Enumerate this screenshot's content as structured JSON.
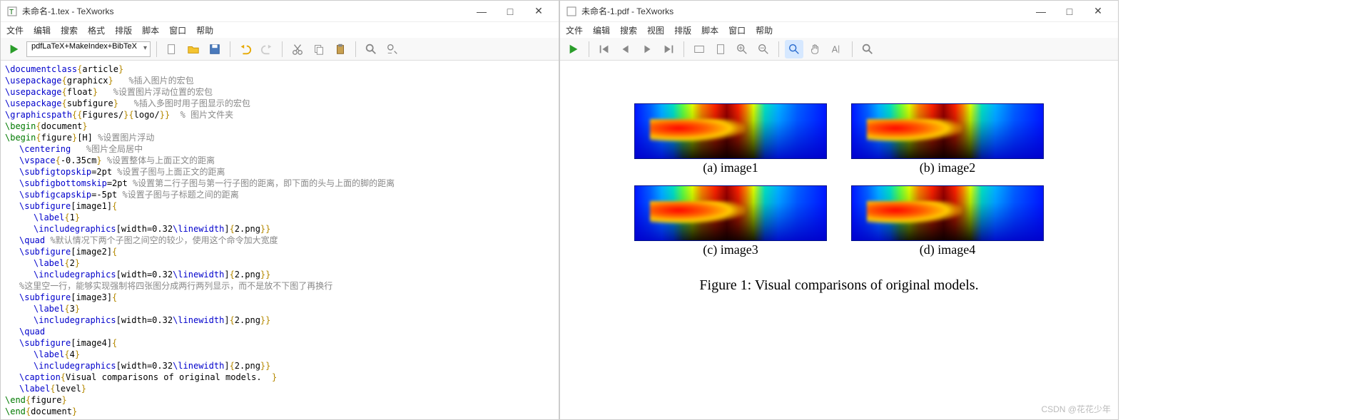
{
  "left": {
    "title": "未命名-1.tex - TeXworks",
    "menus": [
      "文件",
      "编辑",
      "搜索",
      "格式",
      "排版",
      "脚本",
      "窗口",
      "帮助"
    ],
    "compile_mode": "pdfLaTeX+MakeIndex+BibTeX",
    "code": [
      {
        "ind": 0,
        "seg": [
          [
            "t-cmd",
            "\\documentclass"
          ],
          [
            "t-yel",
            "{"
          ],
          [
            "",
            "article"
          ],
          [
            "t-yel",
            "}"
          ]
        ]
      },
      {
        "ind": 0,
        "seg": [
          [
            "t-cmd",
            "\\usepackage"
          ],
          [
            "t-yel",
            "{"
          ],
          [
            "",
            "graphicx"
          ],
          [
            "t-yel",
            "}"
          ],
          [
            "t-gry",
            "   %插入图片的宏包"
          ]
        ]
      },
      {
        "ind": 0,
        "seg": [
          [
            "t-cmd",
            "\\usepackage"
          ],
          [
            "t-yel",
            "{"
          ],
          [
            "",
            "float"
          ],
          [
            "t-yel",
            "}"
          ],
          [
            "t-gry",
            "   %设置图片浮动位置的宏包"
          ]
        ]
      },
      {
        "ind": 0,
        "seg": [
          [
            "t-cmd",
            "\\usepackage"
          ],
          [
            "t-yel",
            "{"
          ],
          [
            "",
            "subfigure"
          ],
          [
            "t-yel",
            "}"
          ],
          [
            "t-gry",
            "   %插入多图时用子图显示的宏包"
          ]
        ]
      },
      {
        "ind": 0,
        "seg": [
          [
            "t-cmd",
            "\\graphicspath"
          ],
          [
            "t-yel",
            "{{"
          ],
          [
            "",
            "Figures/"
          ],
          [
            "t-yel",
            "}{"
          ],
          [
            "",
            "logo/"
          ],
          [
            "t-yel",
            "}}"
          ],
          [
            "t-gry",
            "  % 图片文件夹"
          ]
        ]
      },
      {
        "ind": 0,
        "seg": [
          [
            "t-grn",
            "\\begin"
          ],
          [
            "t-yel",
            "{"
          ],
          [
            "",
            "document"
          ],
          [
            "t-yel",
            "}"
          ]
        ]
      },
      {
        "ind": 0,
        "seg": [
          [
            "t-grn",
            "\\begin"
          ],
          [
            "t-yel",
            "{"
          ],
          [
            "",
            "figure"
          ],
          [
            "t-yel",
            "}"
          ],
          [
            "",
            "[H] "
          ],
          [
            "t-gry",
            "%设置图片浮动"
          ]
        ]
      },
      {
        "ind": 1,
        "seg": [
          [
            "t-cmd",
            "\\centering"
          ],
          [
            "t-gry",
            "   %图片全局居中"
          ]
        ]
      },
      {
        "ind": 1,
        "seg": [
          [
            "t-cmd",
            "\\vspace"
          ],
          [
            "t-yel",
            "{"
          ],
          [
            "",
            "-0.35cm"
          ],
          [
            "t-yel",
            "}"
          ],
          [
            "t-gry",
            " %设置整体与上面正文的距离"
          ]
        ]
      },
      {
        "ind": 1,
        "seg": [
          [
            "t-cmd",
            "\\subfigtopskip"
          ],
          [
            "",
            "=2pt "
          ],
          [
            "t-gry",
            "%设置子图与上面正文的距离"
          ]
        ]
      },
      {
        "ind": 1,
        "seg": [
          [
            "t-cmd",
            "\\subfigbottomskip"
          ],
          [
            "",
            "=2pt "
          ],
          [
            "t-gry",
            "%设置第二行子图与第一行子图的距离，即下面的头与上面的脚的距离"
          ]
        ]
      },
      {
        "ind": 1,
        "seg": [
          [
            "t-cmd",
            "\\subfigcapskip"
          ],
          [
            "",
            "=-5pt "
          ],
          [
            "t-gry",
            "%设置子图与子标题之间的距离"
          ]
        ]
      },
      {
        "ind": 1,
        "seg": [
          [
            "t-cmd",
            "\\subfigure"
          ],
          [
            "",
            "[image1]"
          ],
          [
            "t-yel",
            "{"
          ]
        ]
      },
      {
        "ind": 2,
        "seg": [
          [
            "t-cmd",
            "\\label"
          ],
          [
            "t-yel",
            "{"
          ],
          [
            "",
            "1"
          ],
          [
            "t-yel",
            "}"
          ]
        ]
      },
      {
        "ind": 2,
        "seg": [
          [
            "t-cmd",
            "\\includegraphics"
          ],
          [
            "",
            "[width=0.32"
          ],
          [
            "t-cmd",
            "\\linewidth"
          ],
          [
            "",
            "]"
          ],
          [
            "t-yel",
            "{"
          ],
          [
            "",
            "2.png"
          ],
          [
            "t-yel",
            "}}"
          ]
        ]
      },
      {
        "ind": 1,
        "seg": [
          [
            "t-cmd",
            "\\quad"
          ],
          [
            "t-gry",
            " %默认情况下两个子图之间空的较少，使用这个命令加大宽度"
          ]
        ]
      },
      {
        "ind": 1,
        "seg": [
          [
            "t-cmd",
            "\\subfigure"
          ],
          [
            "",
            "[image2]"
          ],
          [
            "t-yel",
            "{"
          ]
        ]
      },
      {
        "ind": 2,
        "seg": [
          [
            "t-cmd",
            "\\label"
          ],
          [
            "t-yel",
            "{"
          ],
          [
            "",
            "2"
          ],
          [
            "t-yel",
            "}"
          ]
        ]
      },
      {
        "ind": 2,
        "seg": [
          [
            "t-cmd",
            "\\includegraphics"
          ],
          [
            "",
            "[width=0.32"
          ],
          [
            "t-cmd",
            "\\linewidth"
          ],
          [
            "",
            "]"
          ],
          [
            "t-yel",
            "{"
          ],
          [
            "",
            "2.png"
          ],
          [
            "t-yel",
            "}}"
          ]
        ]
      },
      {
        "ind": 1,
        "seg": [
          [
            "t-gry",
            "%这里空一行，能够实现强制将四张图分成两行两列显示，而不是放不下图了再换行"
          ]
        ]
      },
      {
        "ind": 1,
        "seg": [
          [
            "t-cmd",
            "\\subfigure"
          ],
          [
            "",
            "[image3]"
          ],
          [
            "t-yel",
            "{"
          ]
        ]
      },
      {
        "ind": 2,
        "seg": [
          [
            "t-cmd",
            "\\label"
          ],
          [
            "t-yel",
            "{"
          ],
          [
            "",
            "3"
          ],
          [
            "t-yel",
            "}"
          ]
        ]
      },
      {
        "ind": 2,
        "seg": [
          [
            "t-cmd",
            "\\includegraphics"
          ],
          [
            "",
            "[width=0.32"
          ],
          [
            "t-cmd",
            "\\linewidth"
          ],
          [
            "",
            "]"
          ],
          [
            "t-yel",
            "{"
          ],
          [
            "",
            "2.png"
          ],
          [
            "t-yel",
            "}}"
          ]
        ]
      },
      {
        "ind": 1,
        "seg": [
          [
            "t-cmd",
            "\\quad"
          ]
        ]
      },
      {
        "ind": 1,
        "seg": [
          [
            "t-cmd",
            "\\subfigure"
          ],
          [
            "",
            "[image4]"
          ],
          [
            "t-yel",
            "{"
          ]
        ]
      },
      {
        "ind": 2,
        "seg": [
          [
            "t-cmd",
            "\\label"
          ],
          [
            "t-yel",
            "{"
          ],
          [
            "",
            "4"
          ],
          [
            "t-yel",
            "}"
          ]
        ]
      },
      {
        "ind": 2,
        "seg": [
          [
            "t-cmd",
            "\\includegraphics"
          ],
          [
            "",
            "[width=0.32"
          ],
          [
            "t-cmd",
            "\\linewidth"
          ],
          [
            "",
            "]"
          ],
          [
            "t-yel",
            "{"
          ],
          [
            "",
            "2.png"
          ],
          [
            "t-yel",
            "}}"
          ]
        ]
      },
      {
        "ind": 0,
        "seg": [
          [
            "",
            ""
          ]
        ]
      },
      {
        "ind": 1,
        "seg": [
          [
            "t-cmd",
            "\\caption"
          ],
          [
            "t-yel",
            "{"
          ],
          [
            "",
            "Visual comparisons of original models.  "
          ],
          [
            "t-yel",
            "}"
          ]
        ]
      },
      {
        "ind": 1,
        "seg": [
          [
            "t-cmd",
            "\\label"
          ],
          [
            "t-yel",
            "{"
          ],
          [
            "",
            "level"
          ],
          [
            "t-yel",
            "}"
          ]
        ]
      },
      {
        "ind": 0,
        "seg": [
          [
            "t-grn",
            "\\end"
          ],
          [
            "t-yel",
            "{"
          ],
          [
            "",
            "figure"
          ],
          [
            "t-yel",
            "}"
          ]
        ]
      },
      {
        "ind": 0,
        "seg": [
          [
            "t-grn",
            "\\end"
          ],
          [
            "t-yel",
            "{"
          ],
          [
            "",
            "document"
          ],
          [
            "t-yel",
            "}"
          ]
        ]
      }
    ]
  },
  "right": {
    "title": "未命名-1.pdf - TeXworks",
    "menus": [
      "文件",
      "编辑",
      "搜索",
      "视图",
      "排版",
      "脚本",
      "窗口",
      "帮助"
    ],
    "subcaps": [
      "(a)  image1",
      "(b)  image2",
      "(c)  image3",
      "(d)  image4"
    ],
    "caption": "Figure 1:  Visual comparisons of original models.",
    "watermark": "CSDN @花花少年"
  },
  "win_btns": {
    "min": "—",
    "max": "□",
    "close": "✕"
  },
  "colors": {
    "cmd": "#0000cc",
    "yel": "#b58900",
    "grn": "#007a00",
    "gry": "#888888",
    "heatmap_border": "#001088"
  }
}
